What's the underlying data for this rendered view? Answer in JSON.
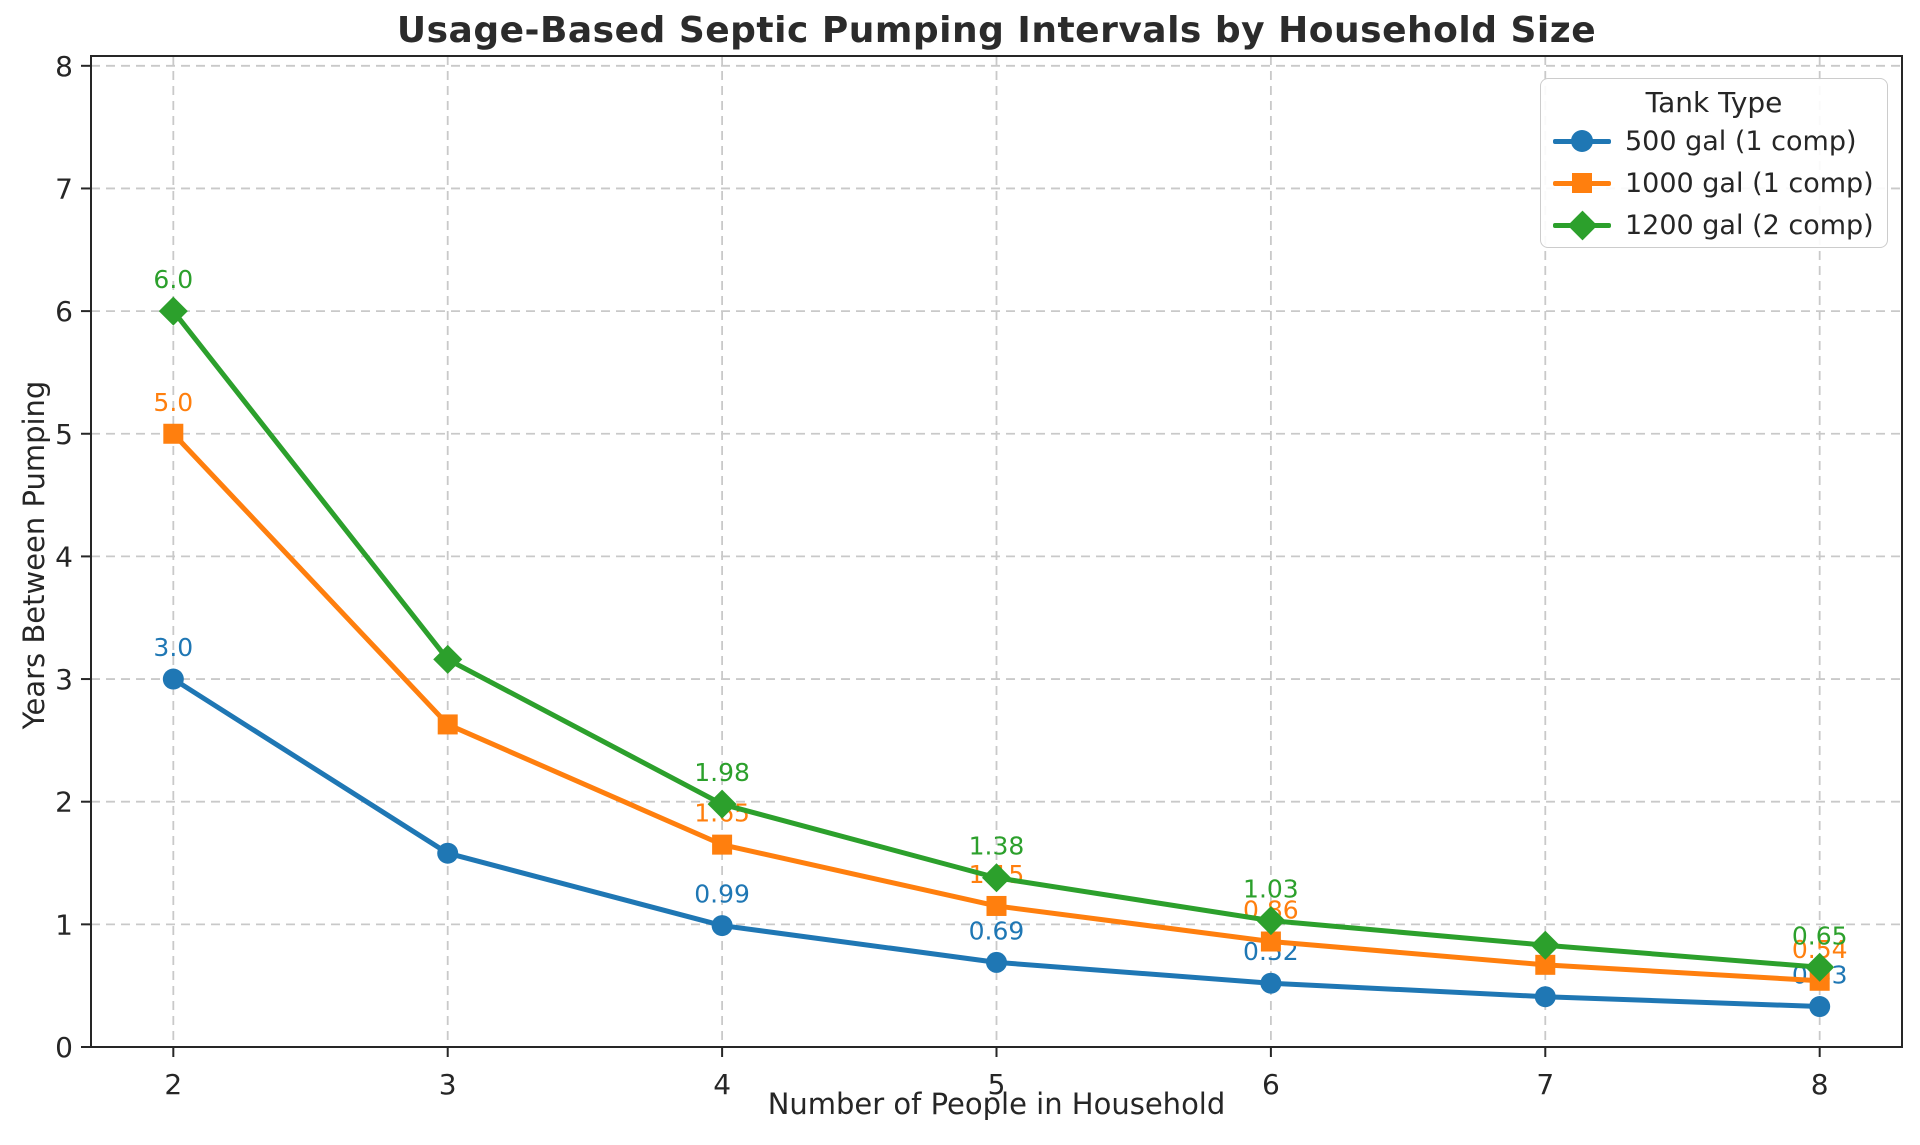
{
  "title": "Usage-Based Septic Pumping Intervals by Household Size",
  "chart_data": {
    "type": "line",
    "x": [
      2,
      3,
      4,
      5,
      6,
      7,
      8
    ],
    "xlabel": "Number of People in Household",
    "ylabel": "Years Between Pumping",
    "xticks": [
      2,
      3,
      4,
      5,
      6,
      7,
      8
    ],
    "yticks": [
      0,
      1,
      2,
      3,
      4,
      5,
      6,
      7,
      8
    ],
    "xlim": [
      1.7,
      8.3
    ],
    "ylim": [
      0,
      8.08
    ],
    "grid": true,
    "grid_style": "dashed",
    "legend": {
      "title": "Tank Type",
      "position": "upper right"
    },
    "series": [
      {
        "name": "500 gal (1 comp)",
        "color": "#1f77b4",
        "marker": "circle",
        "values": [
          3.0,
          1.58,
          0.99,
          0.69,
          0.52,
          0.41,
          0.33
        ],
        "labels": [
          "3.0",
          null,
          "0.99",
          "0.69",
          "0.52",
          null,
          "0.33"
        ]
      },
      {
        "name": "1000 gal (1 comp)",
        "color": "#ff7f0e",
        "marker": "square",
        "values": [
          5.0,
          2.63,
          1.65,
          1.15,
          0.86,
          0.67,
          0.54
        ],
        "labels": [
          "5.0",
          null,
          "1.65",
          "1.15",
          "0.86",
          null,
          "0.54"
        ]
      },
      {
        "name": "1200 gal (2 comp)",
        "color": "#2ca02c",
        "marker": "diamond",
        "values": [
          6.0,
          3.16,
          1.98,
          1.38,
          1.03,
          0.83,
          0.65
        ],
        "labels": [
          "6.0",
          null,
          "1.98",
          "1.38",
          "1.03",
          null,
          "0.65"
        ]
      }
    ]
  }
}
